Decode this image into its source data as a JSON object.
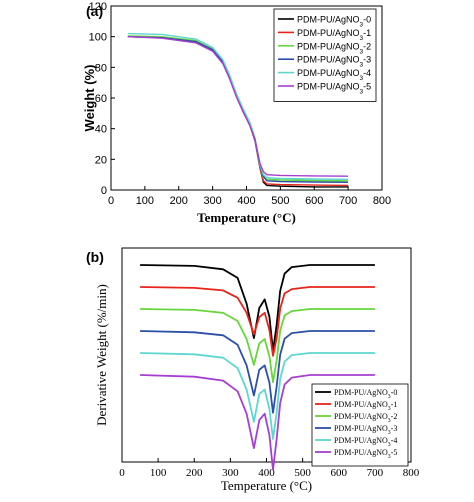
{
  "chart_data": [
    {
      "panel_label": "(a)",
      "type": "line",
      "xlabel": "Temperature (°C)",
      "ylabel": "Weight (%)",
      "xlim": [
        0,
        800
      ],
      "ylim": [
        0,
        120
      ],
      "xticks": [
        0,
        100,
        200,
        300,
        400,
        500,
        600,
        700,
        800
      ],
      "yticks": [
        0,
        20,
        40,
        60,
        80,
        100,
        120
      ],
      "legend_position": "top-right",
      "grid": false,
      "series": [
        {
          "name": "PDM-PU/AgNO",
          "sub": "3",
          "suffix": "-0",
          "color": "#000000",
          "x": [
            50,
            150,
            250,
            300,
            330,
            350,
            370,
            390,
            410,
            425,
            440,
            450,
            460,
            500,
            600,
            700
          ],
          "y": [
            100,
            99.5,
            97,
            92,
            84,
            74,
            62,
            52,
            43,
            33,
            14,
            5,
            3,
            2.5,
            2,
            2
          ]
        },
        {
          "name": "PDM-PU/AgNO",
          "sub": "3",
          "suffix": "-1",
          "color": "#e8231a",
          "x": [
            50,
            150,
            250,
            300,
            330,
            350,
            370,
            390,
            410,
            425,
            440,
            450,
            460,
            500,
            600,
            700
          ],
          "y": [
            100,
            99.4,
            96.5,
            91,
            83,
            73,
            61,
            51,
            42,
            32,
            14,
            6,
            4,
            3.5,
            3.2,
            3
          ]
        },
        {
          "name": "PDM-PU/AgNO",
          "sub": "3",
          "suffix": "-2",
          "color": "#66d63c",
          "x": [
            50,
            150,
            250,
            300,
            330,
            350,
            370,
            390,
            410,
            425,
            440,
            450,
            460,
            500,
            600,
            700
          ],
          "y": [
            100.5,
            100,
            97.5,
            92,
            84,
            74,
            62,
            52,
            43,
            33,
            15,
            8,
            7,
            6.5,
            6.2,
            6
          ]
        },
        {
          "name": "PDM-PU/AgNO",
          "sub": "3",
          "suffix": "-3",
          "color": "#2b4fa8",
          "x": [
            50,
            150,
            250,
            300,
            330,
            350,
            370,
            390,
            410,
            425,
            440,
            450,
            460,
            500,
            600,
            700
          ],
          "y": [
            100,
            99.3,
            96.8,
            91.5,
            83.5,
            73.5,
            61.5,
            51.5,
            42.5,
            32.5,
            15,
            9,
            6,
            5.5,
            5.2,
            5
          ]
        },
        {
          "name": "PDM-PU/AgNO",
          "sub": "3",
          "suffix": "-4",
          "color": "#5fd6d0",
          "x": [
            50,
            150,
            250,
            300,
            330,
            350,
            370,
            390,
            410,
            425,
            440,
            450,
            460,
            500,
            600,
            700
          ],
          "y": [
            102,
            101.5,
            98.5,
            93,
            85,
            75,
            63,
            53,
            44,
            34,
            16,
            10,
            8,
            7.5,
            7.2,
            7
          ]
        },
        {
          "name": "PDM-PU/AgNO",
          "sub": "3",
          "suffix": "-5",
          "color": "#a63fcf",
          "x": [
            50,
            150,
            250,
            300,
            330,
            350,
            370,
            390,
            410,
            425,
            440,
            450,
            460,
            500,
            600,
            700
          ],
          "y": [
            100,
            99,
            96,
            90.5,
            82.5,
            72.5,
            61,
            51,
            42,
            33,
            17,
            12,
            10,
            9.5,
            9.2,
            9
          ]
        }
      ]
    },
    {
      "panel_label": "(b)",
      "type": "line",
      "xlabel": "Temperature (°C)",
      "ylabel": "Derivative Weight (%/min)",
      "xlim": [
        0,
        800
      ],
      "xticks": [
        0,
        100,
        200,
        300,
        400,
        500,
        600,
        700,
        800
      ],
      "y_ticks_shown": false,
      "legend_position": "bottom-right",
      "grid": false,
      "series": [
        {
          "name": "PDM-PU/AgNO",
          "sub": "3",
          "suffix": "-0",
          "color": "#000000",
          "offset": 0,
          "x": [
            50,
            200,
            280,
            320,
            345,
            365,
            380,
            395,
            408,
            418,
            428,
            438,
            450,
            470,
            520,
            700
          ],
          "y": [
            0,
            -0.2,
            -1.0,
            -3.0,
            -9.0,
            -17.0,
            -10.0,
            -8.0,
            -12.0,
            -20.0,
            -14.0,
            -6.0,
            -2.0,
            -0.5,
            0,
            0
          ]
        },
        {
          "name": "PDM-PU/AgNO",
          "sub": "3",
          "suffix": "-1",
          "color": "#e8231a",
          "offset": -6,
          "x": [
            50,
            200,
            280,
            320,
            345,
            365,
            380,
            395,
            408,
            418,
            428,
            438,
            450,
            470,
            520,
            700
          ],
          "y": [
            0,
            -0.2,
            -0.8,
            -2.5,
            -6.0,
            -11.0,
            -7.0,
            -6.0,
            -10.0,
            -16.0,
            -12.0,
            -5.0,
            -1.5,
            -0.5,
            0,
            0
          ]
        },
        {
          "name": "PDM-PU/AgNO",
          "sub": "3",
          "suffix": "-2",
          "color": "#66d63c",
          "offset": -12,
          "x": [
            50,
            200,
            280,
            320,
            345,
            365,
            380,
            395,
            408,
            418,
            428,
            438,
            450,
            470,
            520,
            700
          ],
          "y": [
            0,
            -0.2,
            -0.9,
            -2.8,
            -7.0,
            -13.0,
            -8.0,
            -7.0,
            -11.0,
            -17.0,
            -12.0,
            -5.0,
            -1.5,
            -0.5,
            0,
            0
          ]
        },
        {
          "name": "PDM-PU/AgNO",
          "sub": "3",
          "suffix": "-3",
          "color": "#2b4fa8",
          "offset": -18,
          "x": [
            50,
            200,
            280,
            320,
            345,
            365,
            380,
            395,
            408,
            418,
            428,
            438,
            450,
            470,
            520,
            700
          ],
          "y": [
            0,
            -0.3,
            -1.0,
            -3.2,
            -8.0,
            -15.0,
            -9.0,
            -8.0,
            -12.0,
            -19.0,
            -13.0,
            -5.5,
            -1.8,
            -0.5,
            0,
            0
          ]
        },
        {
          "name": "PDM-PU/AgNO",
          "sub": "3",
          "suffix": "-4",
          "color": "#5fd6d0",
          "offset": -24,
          "x": [
            50,
            200,
            280,
            320,
            345,
            365,
            380,
            395,
            408,
            418,
            428,
            438,
            450,
            470,
            520,
            700
          ],
          "y": [
            0,
            -0.3,
            -1.1,
            -3.5,
            -8.5,
            -16.0,
            -9.5,
            -8.5,
            -13.0,
            -20.0,
            -14.0,
            -6.0,
            -2.0,
            -0.5,
            0,
            0
          ]
        },
        {
          "name": "PDM-PU/AgNO",
          "sub": "3",
          "suffix": "-5",
          "color": "#a63fcf",
          "offset": -30,
          "x": [
            50,
            200,
            280,
            320,
            345,
            365,
            380,
            395,
            408,
            418,
            428,
            438,
            450,
            470,
            520,
            700
          ],
          "y": [
            0,
            -0.4,
            -1.3,
            -3.8,
            -9.0,
            -17.0,
            -10.5,
            -9.0,
            -14.0,
            -22.0,
            -15.0,
            -6.5,
            -2.2,
            -0.6,
            0,
            0
          ]
        }
      ]
    }
  ]
}
